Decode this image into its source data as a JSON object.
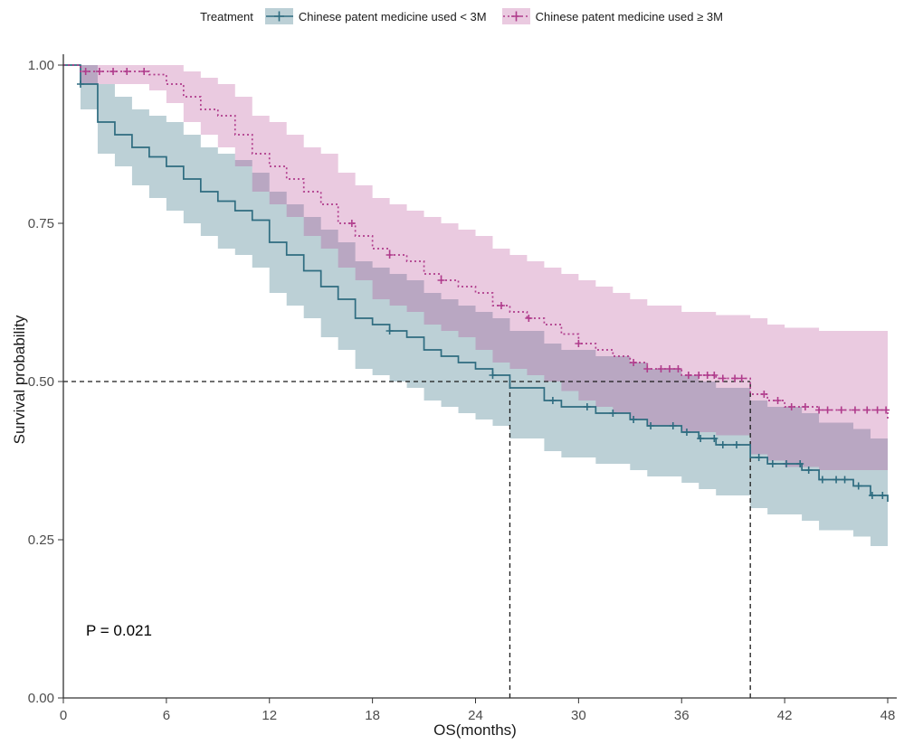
{
  "chart_data": {
    "type": "line",
    "subtype": "kaplan-meier-survival",
    "title": "",
    "legend_title": "Treatment",
    "legend_position": "top",
    "xlabel": "OS(months)",
    "ylabel": "Survival probability",
    "xlim": [
      0,
      48
    ],
    "ylim": [
      0,
      1
    ],
    "x_ticks": [
      0,
      6,
      12,
      18,
      24,
      30,
      36,
      42,
      48
    ],
    "y_ticks": [
      "0.00",
      "0.25",
      "0.50",
      "0.75",
      "1.00"
    ],
    "grid": false,
    "p_value": "P = 0.021",
    "median_survival": {
      "y": 0.5,
      "times": [
        26,
        40
      ]
    },
    "series": [
      {
        "id": "lt3m",
        "name": "Chinese patent medicine used < 3M",
        "line_style": "solid",
        "line_color": "#2e6c80",
        "band_color": "rgba(46,108,128,0.32)",
        "points_format": [
          "time_months",
          "survival",
          "ci_lower",
          "ci_upper"
        ],
        "points": [
          [
            0,
            1.0,
            1.0,
            1.0
          ],
          [
            1,
            0.97,
            0.93,
            1.0
          ],
          [
            2,
            0.91,
            0.86,
            0.97
          ],
          [
            3,
            0.89,
            0.84,
            0.95
          ],
          [
            4,
            0.87,
            0.81,
            0.93
          ],
          [
            5,
            0.855,
            0.79,
            0.92
          ],
          [
            6,
            0.84,
            0.77,
            0.91
          ],
          [
            7,
            0.82,
            0.75,
            0.89
          ],
          [
            8,
            0.8,
            0.73,
            0.87
          ],
          [
            9,
            0.785,
            0.71,
            0.86
          ],
          [
            10,
            0.77,
            0.7,
            0.85
          ],
          [
            11,
            0.755,
            0.68,
            0.83
          ],
          [
            12,
            0.72,
            0.64,
            0.8
          ],
          [
            13,
            0.7,
            0.62,
            0.78
          ],
          [
            14,
            0.675,
            0.6,
            0.76
          ],
          [
            15,
            0.65,
            0.57,
            0.74
          ],
          [
            16,
            0.63,
            0.55,
            0.72
          ],
          [
            17,
            0.6,
            0.52,
            0.69
          ],
          [
            18,
            0.59,
            0.51,
            0.68
          ],
          [
            19,
            0.58,
            0.5,
            0.67
          ],
          [
            20,
            0.57,
            0.49,
            0.66
          ],
          [
            21,
            0.55,
            0.47,
            0.64
          ],
          [
            22,
            0.54,
            0.46,
            0.63
          ],
          [
            23,
            0.53,
            0.45,
            0.62
          ],
          [
            24,
            0.52,
            0.44,
            0.61
          ],
          [
            25,
            0.51,
            0.43,
            0.6
          ],
          [
            26,
            0.49,
            0.41,
            0.58
          ],
          [
            28,
            0.47,
            0.39,
            0.56
          ],
          [
            29,
            0.46,
            0.38,
            0.55
          ],
          [
            31,
            0.45,
            0.37,
            0.54
          ],
          [
            33,
            0.44,
            0.36,
            0.53
          ],
          [
            34,
            0.43,
            0.35,
            0.52
          ],
          [
            36,
            0.42,
            0.34,
            0.51
          ],
          [
            37,
            0.41,
            0.33,
            0.5
          ],
          [
            38,
            0.4,
            0.32,
            0.49
          ],
          [
            40,
            0.38,
            0.3,
            0.47
          ],
          [
            41,
            0.37,
            0.29,
            0.46
          ],
          [
            43,
            0.36,
            0.28,
            0.45
          ],
          [
            44,
            0.345,
            0.265,
            0.435
          ],
          [
            46,
            0.335,
            0.255,
            0.425
          ],
          [
            47,
            0.32,
            0.24,
            0.41
          ],
          [
            48,
            0.31,
            0.23,
            0.4
          ]
        ],
        "censor_times": [
          1,
          19,
          25,
          28.5,
          30.5,
          32,
          33.2,
          34.2,
          35.5,
          36.3,
          37.1,
          37.9,
          38.4,
          39.2,
          40.5,
          41.3,
          42.1,
          42.9,
          43.4,
          44.2,
          45,
          45.5,
          46.3,
          47.1,
          47.7
        ]
      },
      {
        "id": "ge3m",
        "name": "Chinese patent medicine used ≥ 3M",
        "line_style": "dotted",
        "line_color": "#b03c8c",
        "band_color": "rgba(176,60,140,0.27)",
        "points_format": [
          "time_months",
          "survival",
          "ci_lower",
          "ci_upper"
        ],
        "points": [
          [
            0,
            1.0,
            1.0,
            1.0
          ],
          [
            1,
            0.99,
            0.97,
            1.0
          ],
          [
            5,
            0.985,
            0.96,
            1.0
          ],
          [
            6,
            0.97,
            0.94,
            1.0
          ],
          [
            7,
            0.95,
            0.91,
            0.99
          ],
          [
            8,
            0.93,
            0.89,
            0.98
          ],
          [
            9,
            0.92,
            0.87,
            0.97
          ],
          [
            10,
            0.89,
            0.84,
            0.95
          ],
          [
            11,
            0.86,
            0.8,
            0.92
          ],
          [
            12,
            0.84,
            0.78,
            0.91
          ],
          [
            13,
            0.82,
            0.76,
            0.89
          ],
          [
            14,
            0.8,
            0.73,
            0.87
          ],
          [
            15,
            0.78,
            0.71,
            0.86
          ],
          [
            16,
            0.75,
            0.68,
            0.83
          ],
          [
            17,
            0.73,
            0.66,
            0.81
          ],
          [
            18,
            0.71,
            0.63,
            0.79
          ],
          [
            19,
            0.7,
            0.62,
            0.78
          ],
          [
            20,
            0.69,
            0.61,
            0.77
          ],
          [
            21,
            0.67,
            0.59,
            0.76
          ],
          [
            22,
            0.66,
            0.58,
            0.75
          ],
          [
            23,
            0.65,
            0.57,
            0.74
          ],
          [
            24,
            0.64,
            0.55,
            0.73
          ],
          [
            25,
            0.62,
            0.53,
            0.71
          ],
          [
            26,
            0.61,
            0.52,
            0.7
          ],
          [
            27,
            0.6,
            0.51,
            0.69
          ],
          [
            28,
            0.59,
            0.5,
            0.68
          ],
          [
            29,
            0.575,
            0.485,
            0.67
          ],
          [
            30,
            0.56,
            0.47,
            0.66
          ],
          [
            31,
            0.55,
            0.46,
            0.65
          ],
          [
            32,
            0.54,
            0.45,
            0.64
          ],
          [
            33,
            0.53,
            0.44,
            0.63
          ],
          [
            34,
            0.52,
            0.43,
            0.62
          ],
          [
            36,
            0.51,
            0.42,
            0.61
          ],
          [
            38,
            0.505,
            0.415,
            0.605
          ],
          [
            40,
            0.48,
            0.385,
            0.6
          ],
          [
            41,
            0.47,
            0.375,
            0.59
          ],
          [
            42,
            0.46,
            0.365,
            0.585
          ],
          [
            44,
            0.455,
            0.36,
            0.58
          ],
          [
            48,
            0.44,
            0.345,
            0.57
          ]
        ],
        "censor_times": [
          1.3,
          2.1,
          2.9,
          3.7,
          4.7,
          16.8,
          19,
          22,
          25.5,
          27.1,
          30,
          33.2,
          34,
          34.8,
          35.3,
          35.8,
          36.4,
          37,
          37.5,
          37.9,
          38.4,
          39.1,
          39.5,
          40.8,
          41.6,
          42.4,
          43.2,
          44,
          44.5,
          45.3,
          46.1,
          46.8,
          47.4,
          47.9
        ]
      }
    ],
    "annotation_line_color": "#1a1a1a",
    "axis_color": "#333333",
    "tick_label_color": "#4d4d4d"
  }
}
